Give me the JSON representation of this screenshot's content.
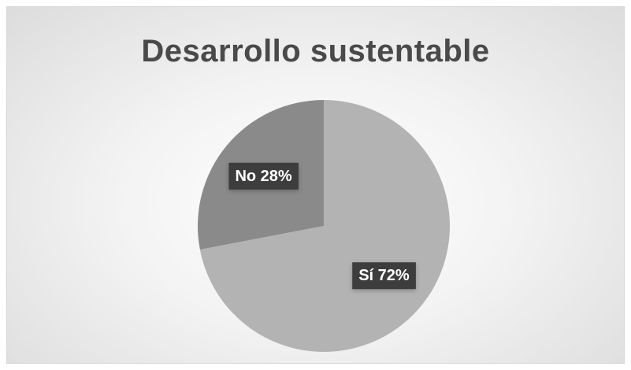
{
  "chart_data": {
    "type": "pie",
    "title": "Desarrollo sustentable",
    "categories": [
      "Sí",
      "No"
    ],
    "values": [
      72,
      28
    ],
    "labels": [
      "Sí 72%",
      "No 28%"
    ],
    "colors": [
      "#b3b3b3",
      "#8a8a8a"
    ],
    "start_angle_deg": 0,
    "direction": "clockwise",
    "legend": "none"
  }
}
